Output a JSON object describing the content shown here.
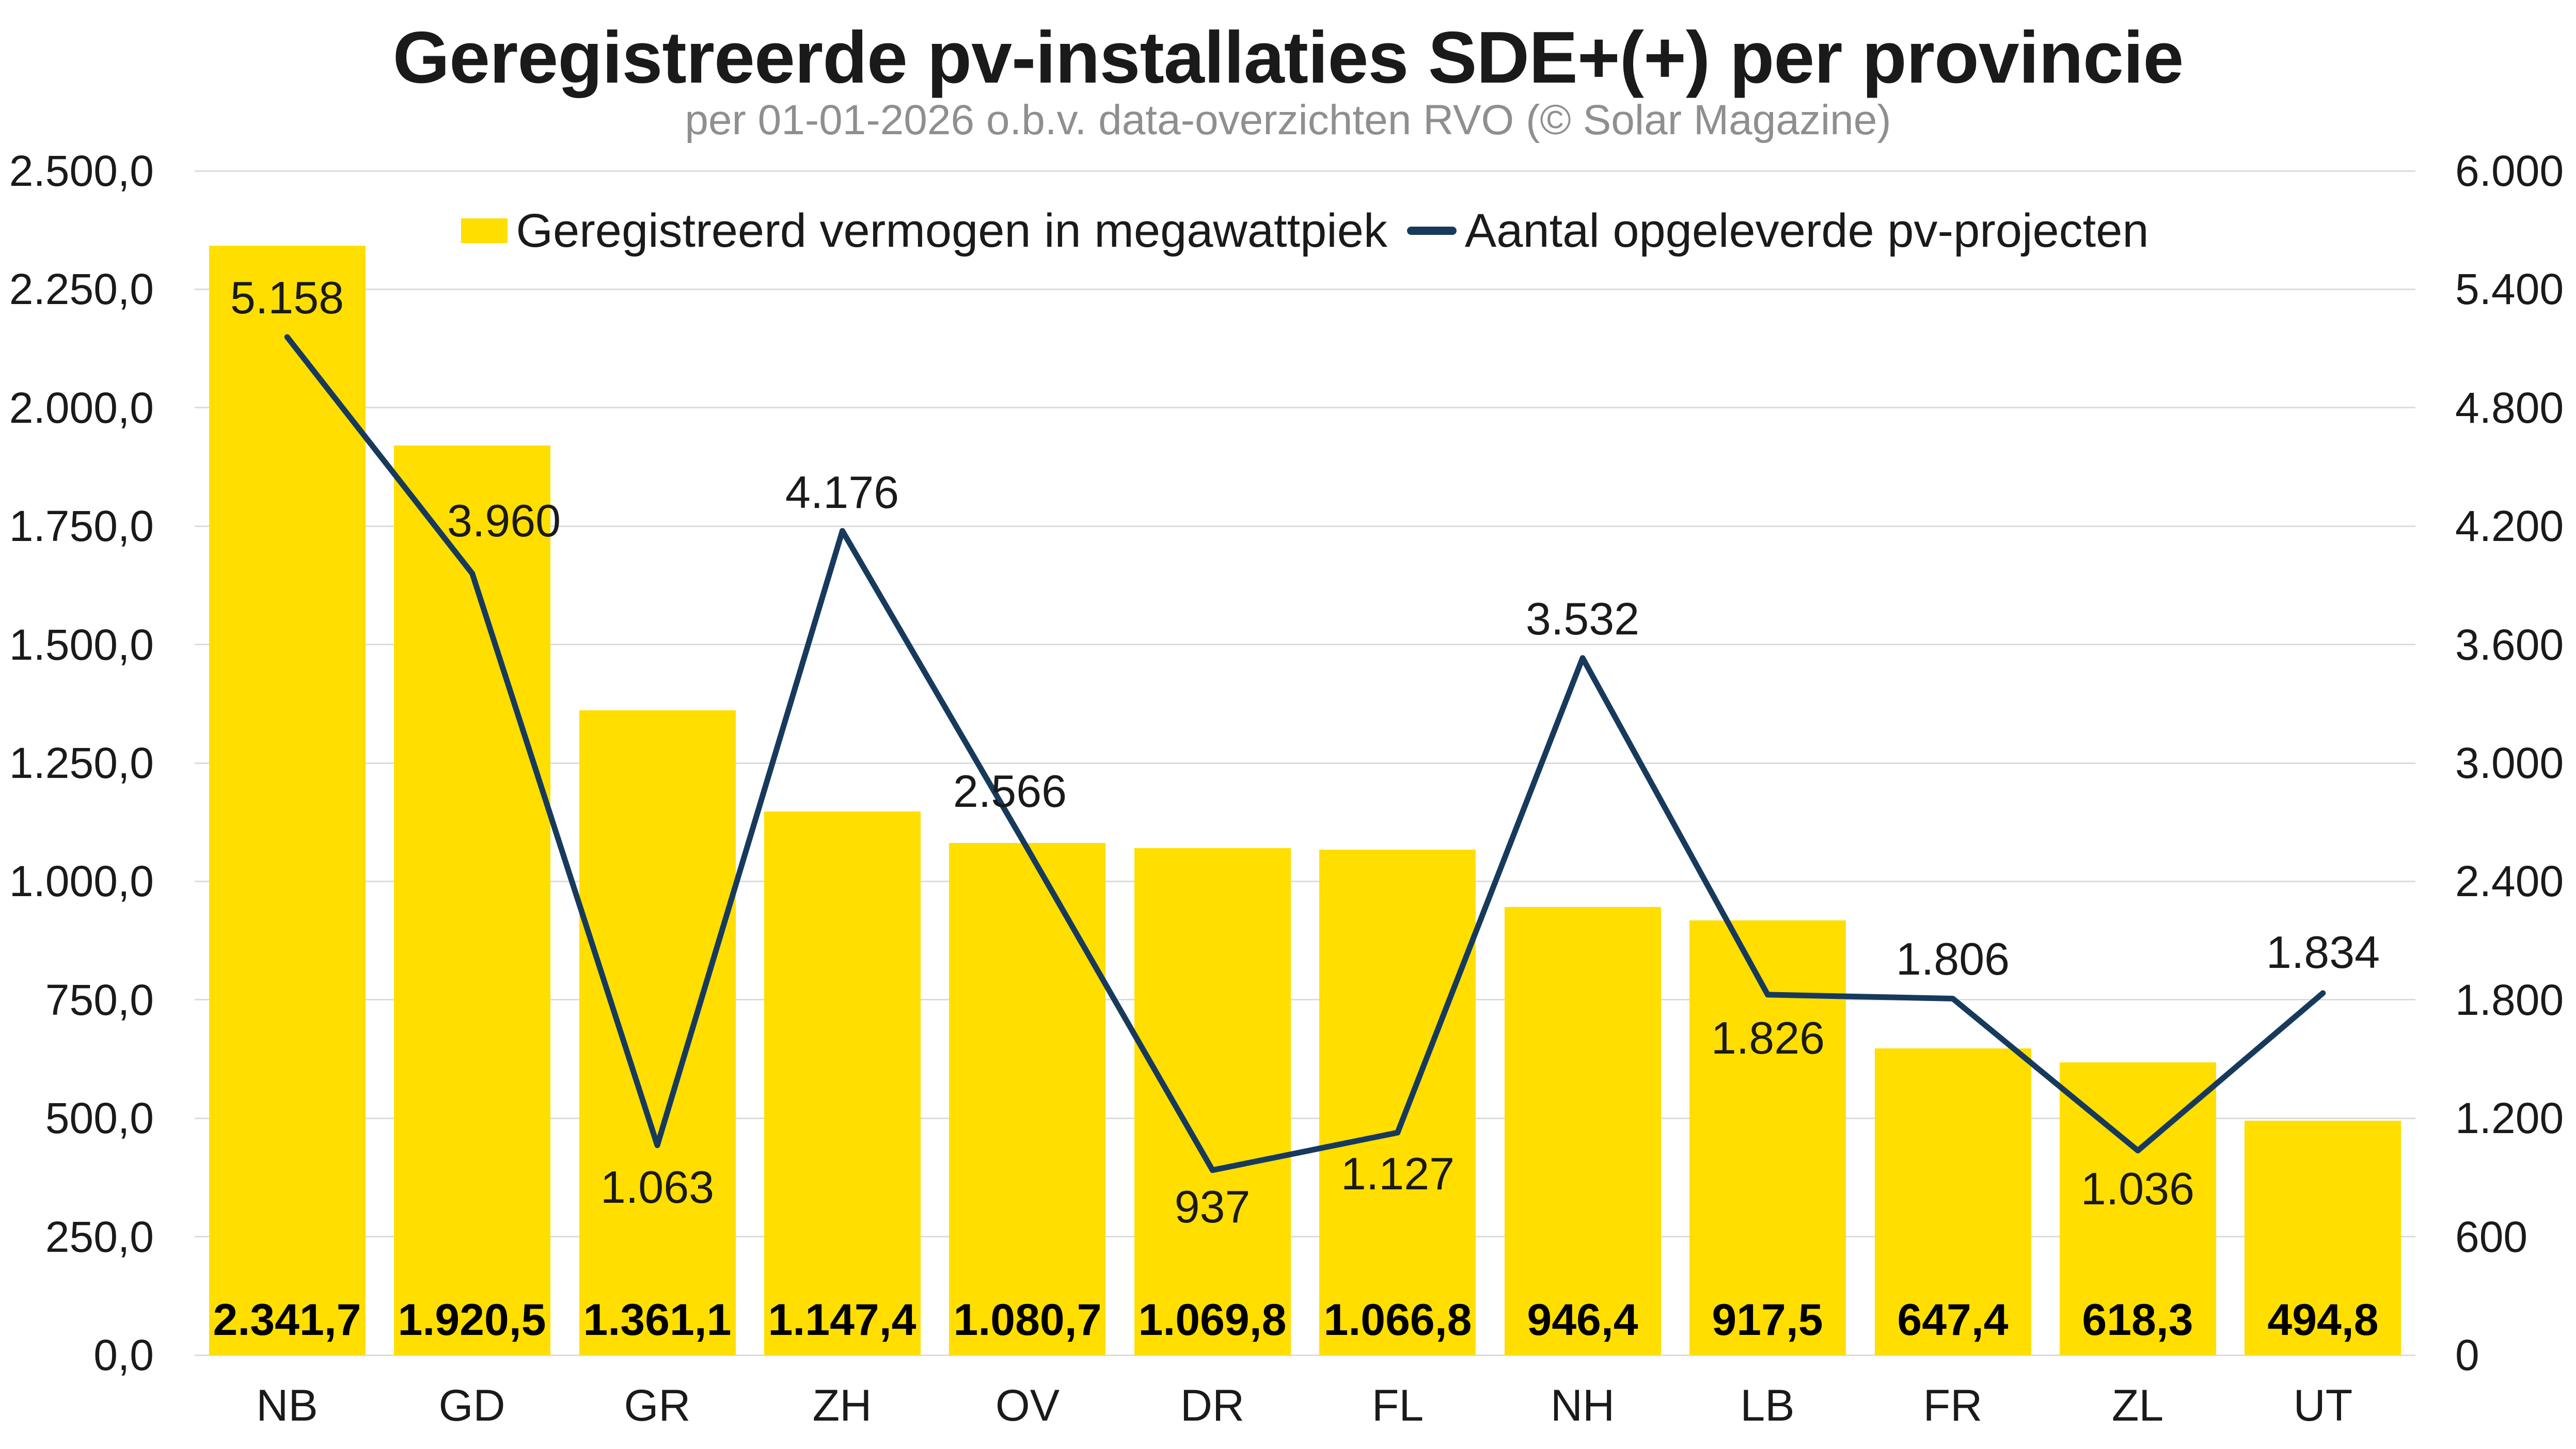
{
  "header": {
    "title": "Geregistreerde pv-installaties SDE+(+) per provincie",
    "subtitle": "per 01-01-2026 o.b.v. data-overzichten RVO (© Solar Magazine)"
  },
  "legend": {
    "bar_label": "Geregistreerd vermogen in megawattpiek",
    "line_label": "Aantal opgeleverde pv-projecten"
  },
  "colors": {
    "bar": "#FFDE00",
    "line": "#173A5C",
    "grid": "#DCDCDC",
    "title": "#1A1A1A",
    "subtitle": "#8F8F8F",
    "text": "#1A1A1A"
  },
  "chart_data": {
    "type": "bar+line",
    "title": "Geregistreerde pv-installaties SDE+(+) per provincie",
    "subtitle": "per 01-01-2026 o.b.v. data-overzichten RVO (© Solar Magazine)",
    "categories": [
      "NB",
      "GD",
      "GR",
      "ZH",
      "OV",
      "DR",
      "FL",
      "NH",
      "LB",
      "FR",
      "ZL",
      "UT"
    ],
    "series": [
      {
        "name": "Geregistreerd vermogen in megawattpiek",
        "type": "bar",
        "axis": "left",
        "values": [
          2341.7,
          1920.5,
          1361.1,
          1147.4,
          1080.7,
          1069.8,
          1066.8,
          946.4,
          917.5,
          647.4,
          618.3,
          494.8
        ],
        "labels": [
          "2.341,7",
          "1.920,5",
          "1.361,1",
          "1.147,4",
          "1.080,7",
          "1.069,8",
          "1.066,8",
          "946,4",
          "917,5",
          "647,4",
          "618,3",
          "494,8"
        ]
      },
      {
        "name": "Aantal opgeleverde pv-projecten",
        "type": "line",
        "axis": "right",
        "values": [
          5158,
          3960,
          1063,
          4176,
          2566,
          937,
          1127,
          3532,
          1826,
          1806,
          1036,
          1834
        ],
        "labels": [
          "5.158",
          "3.960",
          "1.063",
          "4.176",
          "2.566",
          "937",
          "1.127",
          "3.532",
          "1.826",
          "1.806",
          "1.036",
          "1.834"
        ],
        "label_placement": [
          "above",
          "above",
          "below",
          "above",
          "above",
          "below",
          "below",
          "above",
          "below",
          "above",
          "below",
          "above"
        ],
        "label_dx": [
          0,
          61,
          0,
          0,
          -34,
          0,
          0,
          0,
          0,
          0,
          0,
          0
        ],
        "label_dy": [
          -76,
          -102,
          81,
          -74,
          -111,
          71,
          80,
          -76,
          84,
          -77,
          74,
          -79
        ]
      }
    ],
    "left_axis": {
      "min": 0,
      "max": 2500,
      "step": 250,
      "tick_labels": [
        "0,0",
        "250,0",
        "500,0",
        "750,0",
        "1.000,0",
        "1.250,0",
        "1.500,0",
        "1.750,0",
        "2.000,0",
        "2.250,0",
        "2.500,0"
      ]
    },
    "right_axis": {
      "min": 0,
      "max": 6000,
      "step": 600,
      "tick_labels": [
        "0",
        "600",
        "1.200",
        "1.800",
        "2.400",
        "3.000",
        "3.600",
        "4.200",
        "4.800",
        "5.400",
        "6.000"
      ]
    },
    "grid": true,
    "legend_position": "top-center"
  }
}
